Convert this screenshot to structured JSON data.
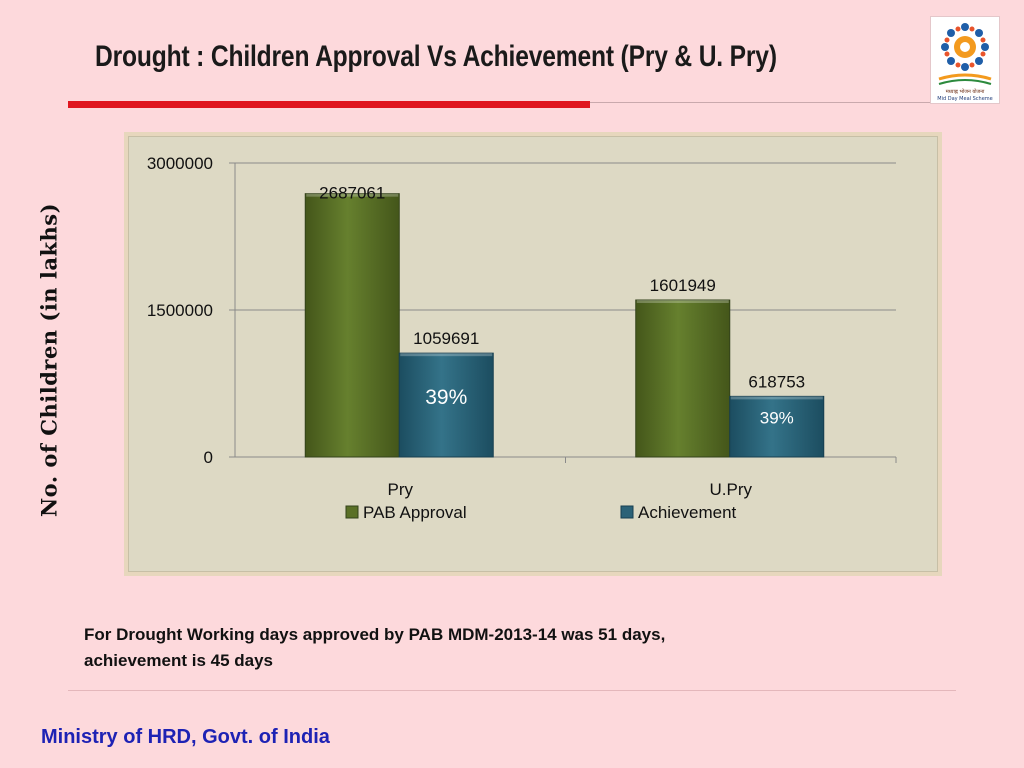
{
  "slide": {
    "title": "Drought  : Children Approval Vs Achievement (Pry & U. Pry)",
    "note_line1": "For Drought Working days approved by PAB MDM-2013-14 was 51 days,",
    "note_line2": "achievement is  45 days",
    "footer": "Ministry of HRD, Govt. of India",
    "logo_text": "मध्याह्न भोजन योजना",
    "logo_caption": "Mid Day Meal Scheme"
  },
  "colors": {
    "title_accent": "#e0161f",
    "footer_text": "#1e22b4",
    "pab_approval": "#5a7026",
    "achievement": "#2b6277"
  },
  "chart_data": {
    "type": "bar",
    "ylabel": "No. of Children (in lakhs)",
    "xlabel": "",
    "categories": [
      "Pry",
      "U.Pry"
    ],
    "ylim": [
      0,
      3000000
    ],
    "yticks": [
      "0",
      "1500000",
      "3000000"
    ],
    "grid": true,
    "legend_position": "bottom",
    "series": [
      {
        "name": "PAB Approval",
        "values": [
          2687061,
          1601949
        ],
        "labels": [
          "2687061",
          "1601949"
        ],
        "color": "#5a7026"
      },
      {
        "name": "Achievement",
        "values": [
          1059691,
          618753
        ],
        "labels": [
          "1059691",
          "618753"
        ],
        "color": "#2b6277"
      }
    ],
    "annotations": [
      {
        "category": "Pry",
        "series": "Achievement",
        "text": "39%"
      },
      {
        "category": "U.Pry",
        "series": "Achievement",
        "text": "39%"
      }
    ]
  }
}
